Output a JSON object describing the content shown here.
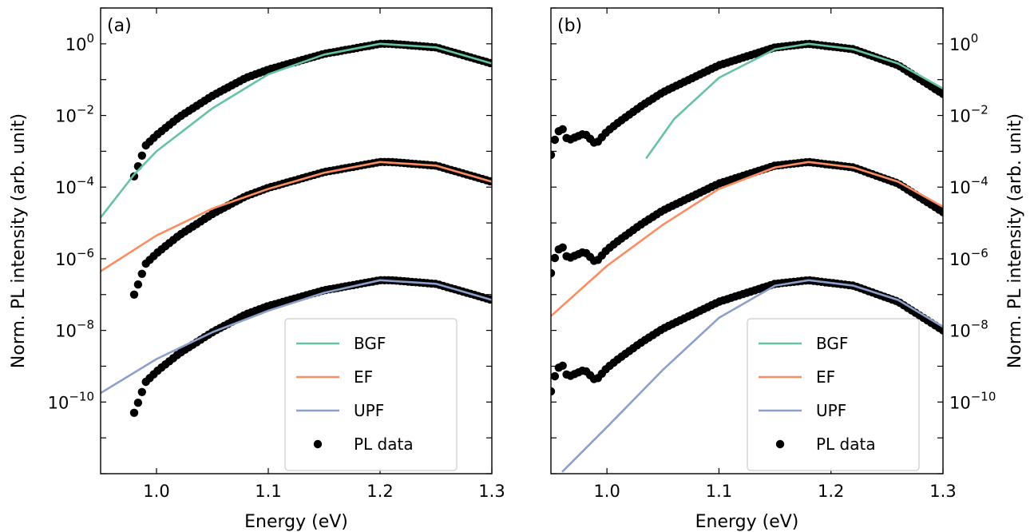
{
  "chart_data": [
    {
      "panel_label": "(a)",
      "type": "line+scatter",
      "xlabel": "Energy (eV)",
      "ylabel": "Norm. PL intensity (arb. unit)",
      "ylabel_side": "left",
      "y_scale": "log",
      "xlim": [
        0.95,
        1.3
      ],
      "ylim_log10": [
        -12.0,
        1.0
      ],
      "x_ticks": [
        1.0,
        1.1,
        1.2,
        1.3
      ],
      "y_ticks_log10": [
        0,
        -2,
        -4,
        -6,
        -8,
        -10
      ],
      "grid": false,
      "legend_position": "lower-right",
      "legend": [
        {
          "name": "BGF",
          "kind": "line",
          "color": "#66c2a5"
        },
        {
          "name": "EF",
          "kind": "line",
          "color": "#fc8d62"
        },
        {
          "name": "UPF",
          "kind": "line",
          "color": "#8da0cb"
        },
        {
          "name": "PL data",
          "kind": "marker",
          "color": "#000000"
        }
      ],
      "pl_data": {
        "x_range": [
          0.98,
          1.3
        ],
        "peak_x": 1.21,
        "offsets_log10": [
          0,
          -3.3,
          -6.6
        ],
        "shape_log10": [
          [
            0.98,
            -3.7
          ],
          [
            0.985,
            -3.3
          ],
          [
            0.99,
            -2.85
          ],
          [
            1.0,
            -2.55
          ],
          [
            1.02,
            -2.05
          ],
          [
            1.05,
            -1.45
          ],
          [
            1.08,
            -0.95
          ],
          [
            1.1,
            -0.72
          ],
          [
            1.15,
            -0.28
          ],
          [
            1.2,
            0.0
          ],
          [
            1.21,
            0.0
          ],
          [
            1.25,
            -0.1
          ],
          [
            1.3,
            -0.55
          ]
        ]
      },
      "fits": [
        {
          "name": "BGF",
          "color": "#66c2a5",
          "offset_log10": 0,
          "points_log10": [
            [
              0.95,
              -4.85
            ],
            [
              0.98,
              -3.65
            ],
            [
              1.0,
              -3.0
            ],
            [
              1.05,
              -1.8
            ],
            [
              1.1,
              -0.85
            ],
            [
              1.15,
              -0.3
            ],
            [
              1.2,
              0.0
            ],
            [
              1.25,
              -0.1
            ],
            [
              1.3,
              -0.55
            ]
          ]
        },
        {
          "name": "EF",
          "color": "#fc8d62",
          "offset_log10": 0,
          "points_log10": [
            [
              0.95,
              -6.35
            ],
            [
              1.0,
              -5.35
            ],
            [
              1.05,
              -4.6
            ],
            [
              1.1,
              -4.05
            ],
            [
              1.15,
              -3.6
            ],
            [
              1.2,
              -3.3
            ],
            [
              1.25,
              -3.4
            ],
            [
              1.3,
              -3.85
            ]
          ]
        },
        {
          "name": "UPF",
          "color": "#8da0cb",
          "offset_log10": 0,
          "points_log10": [
            [
              0.95,
              -9.75
            ],
            [
              1.0,
              -8.8
            ],
            [
              1.05,
              -8.05
            ],
            [
              1.1,
              -7.45
            ],
            [
              1.15,
              -6.95
            ],
            [
              1.2,
              -6.6
            ],
            [
              1.25,
              -6.7
            ],
            [
              1.3,
              -7.15
            ]
          ]
        }
      ]
    },
    {
      "panel_label": "(b)",
      "type": "line+scatter",
      "xlabel": "Energy (eV)",
      "ylabel": "Norm. PL intensity (arb. unit)",
      "ylabel_side": "right",
      "y_scale": "log",
      "xlim": [
        0.95,
        1.3
      ],
      "ylim_log10": [
        -12.0,
        1.0
      ],
      "x_ticks": [
        1.0,
        1.1,
        1.2,
        1.3
      ],
      "y_ticks_log10": [
        0,
        -2,
        -4,
        -6,
        -8,
        -10
      ],
      "grid": false,
      "legend_position": "lower-center",
      "legend": [
        {
          "name": "BGF",
          "kind": "line",
          "color": "#66c2a5"
        },
        {
          "name": "EF",
          "kind": "line",
          "color": "#fc8d62"
        },
        {
          "name": "UPF",
          "kind": "line",
          "color": "#8da0cb"
        },
        {
          "name": "PL data",
          "kind": "marker",
          "color": "#000000"
        }
      ],
      "pl_data": {
        "x_range": [
          0.95,
          1.3
        ],
        "peak_x": 1.18,
        "offsets_log10": [
          0,
          -3.3,
          -6.6
        ],
        "shape_log10": [
          [
            0.95,
            -3.1
          ],
          [
            0.955,
            -2.5
          ],
          [
            0.96,
            -2.35
          ],
          [
            0.965,
            -2.7
          ],
          [
            0.98,
            -2.5
          ],
          [
            0.99,
            -2.8
          ],
          [
            1.0,
            -2.45
          ],
          [
            1.01,
            -2.2
          ],
          [
            1.03,
            -1.75
          ],
          [
            1.05,
            -1.35
          ],
          [
            1.07,
            -1.05
          ],
          [
            1.1,
            -0.6
          ],
          [
            1.15,
            -0.1
          ],
          [
            1.18,
            0.0
          ],
          [
            1.22,
            -0.15
          ],
          [
            1.26,
            -0.6
          ],
          [
            1.3,
            -1.4
          ]
        ]
      },
      "fits": [
        {
          "name": "BGF",
          "color": "#66c2a5",
          "offset_log10": 0,
          "points_log10": [
            [
              1.035,
              -3.2
            ],
            [
              1.06,
              -2.1
            ],
            [
              1.1,
              -0.95
            ],
            [
              1.15,
              -0.15
            ],
            [
              1.18,
              0.0
            ],
            [
              1.22,
              -0.15
            ],
            [
              1.26,
              -0.55
            ],
            [
              1.3,
              -1.25
            ]
          ]
        },
        {
          "name": "EF",
          "color": "#fc8d62",
          "offset_log10": 0,
          "points_log10": [
            [
              0.95,
              -7.6
            ],
            [
              1.0,
              -6.2
            ],
            [
              1.05,
              -5.05
            ],
            [
              1.1,
              -4.05
            ],
            [
              1.15,
              -3.45
            ],
            [
              1.18,
              -3.3
            ],
            [
              1.22,
              -3.45
            ],
            [
              1.26,
              -3.85
            ],
            [
              1.3,
              -4.55
            ]
          ]
        },
        {
          "name": "UPF",
          "color": "#8da0cb",
          "offset_log10": 0,
          "points_log10": [
            [
              0.96,
              -11.95
            ],
            [
              1.0,
              -10.7
            ],
            [
              1.05,
              -9.1
            ],
            [
              1.1,
              -7.65
            ],
            [
              1.15,
              -6.75
            ],
            [
              1.18,
              -6.6
            ],
            [
              1.22,
              -6.75
            ],
            [
              1.26,
              -7.15
            ],
            [
              1.3,
              -7.9
            ]
          ]
        }
      ]
    }
  ]
}
